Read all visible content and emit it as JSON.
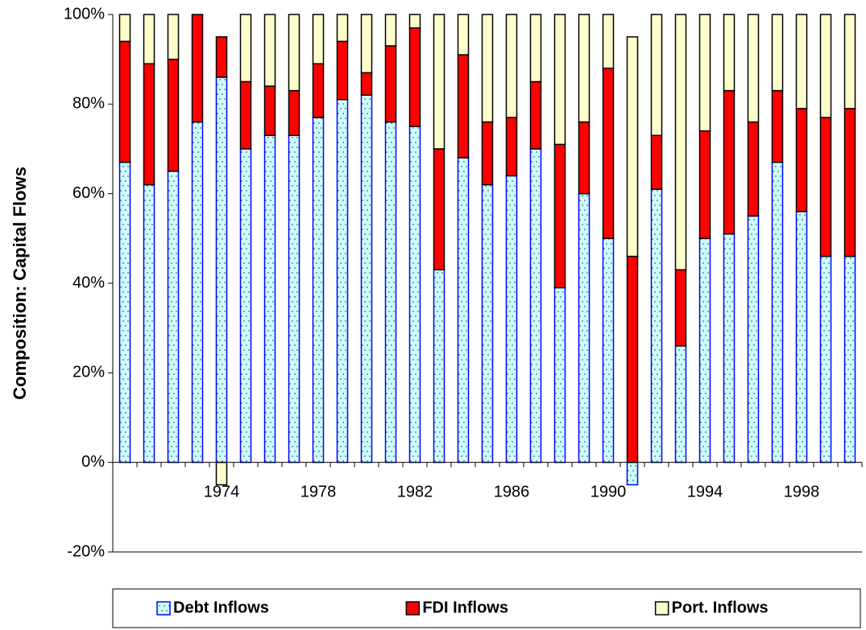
{
  "chart_data": {
    "type": "stacked_bar",
    "ylabel": "Composition: Capital Flows",
    "categories": [
      null,
      null,
      null,
      null,
      "1974",
      null,
      null,
      null,
      "1978",
      null,
      null,
      null,
      "1982",
      null,
      null,
      null,
      "1986",
      null,
      null,
      null,
      "1990",
      null,
      null,
      null,
      "1994",
      null,
      null,
      null,
      "1998",
      null,
      null
    ],
    "series": [
      {
        "name": "Debt Inflows",
        "color": "#ccffff",
        "edgecolor": "#0000ff",
        "values": [
          67,
          62,
          65,
          76,
          86,
          70,
          73,
          73,
          77,
          81,
          82,
          76,
          75,
          43,
          68,
          62,
          64,
          70,
          39,
          60,
          50,
          -5,
          61,
          26,
          50,
          51,
          55,
          67,
          56,
          46,
          46
        ]
      },
      {
        "name": "FDI Inflows",
        "color": "#ff0000",
        "edgecolor": "#000000",
        "values": [
          27,
          27,
          25,
          24,
          9,
          15,
          11,
          10,
          12,
          13,
          5,
          17,
          22,
          27,
          23,
          14,
          13,
          15,
          32,
          16,
          38,
          46,
          12,
          17,
          24,
          32,
          21,
          16,
          23,
          31,
          33
        ]
      },
      {
        "name": "Port. Inflows",
        "color": "#ffffcc",
        "edgecolor": "#000000",
        "values": [
          6,
          11,
          10,
          0,
          -5,
          15,
          16,
          17,
          11,
          6,
          13,
          7,
          3,
          30,
          9,
          24,
          23,
          15,
          29,
          24,
          12,
          49,
          27,
          57,
          26,
          17,
          24,
          17,
          21,
          23,
          21
        ]
      }
    ],
    "ylim": [
      -20,
      100
    ],
    "yticks": [
      {
        "value": -20,
        "label": "-20%"
      },
      {
        "value": 0,
        "label": "0%"
      },
      {
        "value": 20,
        "label": "20%"
      },
      {
        "value": 40,
        "label": "40%"
      },
      {
        "value": 60,
        "label": "60%"
      },
      {
        "value": 80,
        "label": "80%"
      },
      {
        "value": 100,
        "label": "100%"
      }
    ],
    "grid": false,
    "legend": "bottom"
  }
}
